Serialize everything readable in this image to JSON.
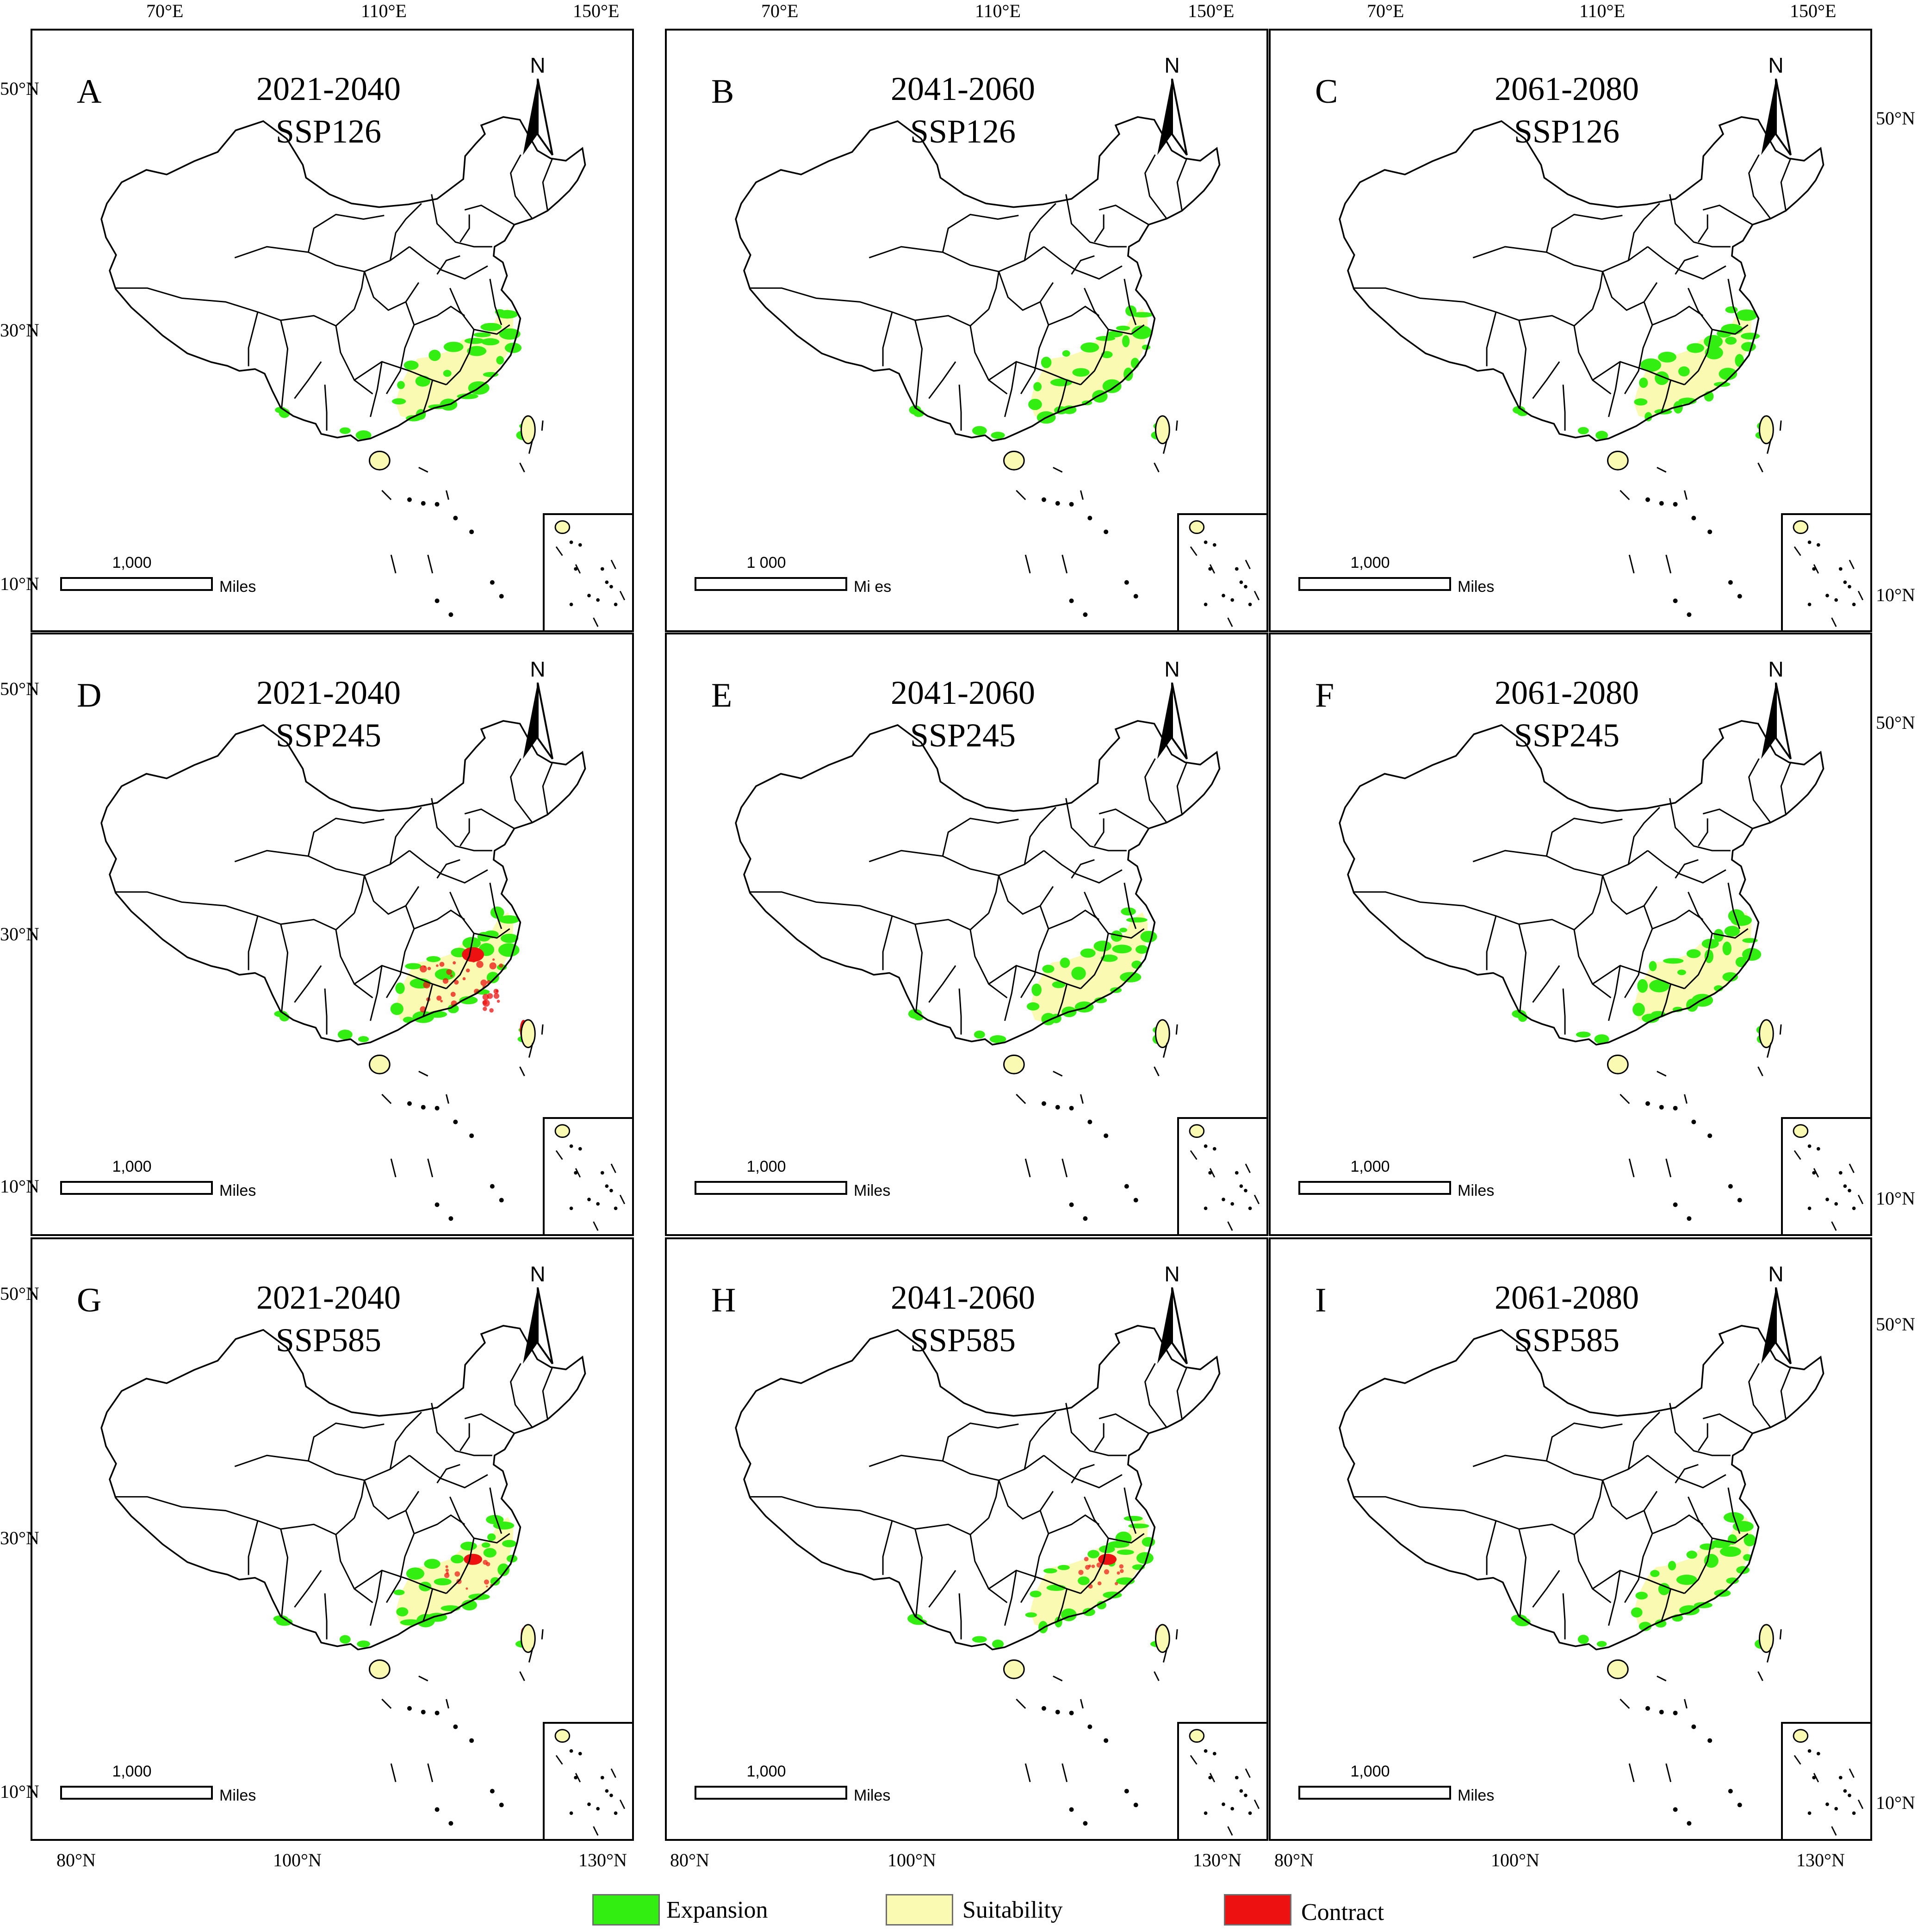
{
  "figure": {
    "top_axis_labels": [
      "70°E",
      "110°E",
      "150°E"
    ],
    "left_axis_labels": [
      "50°N",
      "30°N",
      "10°N"
    ],
    "right_axis_labels": [
      "50°N",
      "10°N"
    ],
    "bottom_axis_labels": [
      "80°N",
      "100°N",
      "130°N"
    ]
  },
  "panels": [
    {
      "letter": "A",
      "period": "2021-2040",
      "scenario": "SSP126",
      "north": "N",
      "scale_value": "1,000",
      "scale_unit": "Miles",
      "contract": "low"
    },
    {
      "letter": "B",
      "period": "2041-2060",
      "scenario": "SSP126",
      "north": "N",
      "scale_value": "1 000",
      "scale_unit": "Mi es",
      "contract": "low"
    },
    {
      "letter": "C",
      "period": "2061-2080",
      "scenario": "SSP126",
      "north": "N",
      "scale_value": "1,000",
      "scale_unit": "Miles",
      "contract": "low"
    },
    {
      "letter": "D",
      "period": "2021-2040",
      "scenario": "SSP245",
      "north": "N",
      "scale_value": "1,000",
      "scale_unit": "Miles",
      "contract": "high"
    },
    {
      "letter": "E",
      "period": "2041-2060",
      "scenario": "SSP245",
      "north": "N",
      "scale_value": "1,000",
      "scale_unit": "Miles",
      "contract": "low"
    },
    {
      "letter": "F",
      "period": "2061-2080",
      "scenario": "SSP245",
      "north": "N",
      "scale_value": "1,000",
      "scale_unit": "Miles",
      "contract": "low"
    },
    {
      "letter": "G",
      "period": "2021-2040",
      "scenario": "SSP585",
      "north": "N",
      "scale_value": "1,000",
      "scale_unit": "Miles",
      "contract": "medium"
    },
    {
      "letter": "H",
      "period": "2041-2060",
      "scenario": "SSP585",
      "north": "N",
      "scale_value": "1,000",
      "scale_unit": "Miles",
      "contract": "medium"
    },
    {
      "letter": "I",
      "period": "2061-2080",
      "scenario": "SSP585",
      "north": "N",
      "scale_value": "1,000",
      "scale_unit": "Miles",
      "contract": "low"
    }
  ],
  "legend": [
    {
      "label": "Expansion",
      "color": "#33ee11"
    },
    {
      "label": "Suitability",
      "color": "#fafab2"
    },
    {
      "label": "Contract",
      "color": "#ee1111"
    }
  ],
  "colors": {
    "expansion": "#33ee11",
    "suitability": "#fafab2",
    "contract": "#ee1111",
    "outline": "#000000"
  }
}
